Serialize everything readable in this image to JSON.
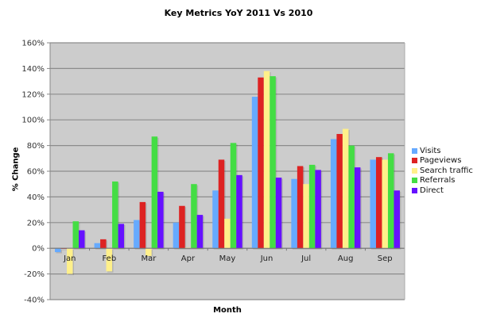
{
  "chart_data": {
    "type": "bar",
    "title": "Key Metrics YoY 2011 Vs 2010",
    "xlabel": "Month",
    "ylabel": "% Change",
    "ylim": [
      -40,
      160
    ],
    "yticks": [
      "160%",
      "140%",
      "120%",
      "100%",
      "80%",
      "60%",
      "40%",
      "20%",
      "0%",
      "-20%",
      "-40%"
    ],
    "ytick_values": [
      160,
      140,
      120,
      100,
      80,
      60,
      40,
      20,
      0,
      -20,
      -40
    ],
    "grid": true,
    "legend_position": "right",
    "categories": [
      "Jan",
      "Feb",
      "Mar",
      "Apr",
      "May",
      "Jun",
      "Jul",
      "Aug",
      "Sep"
    ],
    "series": [
      {
        "name": "Visits",
        "color": "#66aaff",
        "values": [
          -3,
          4,
          22,
          20,
          45,
          118,
          54,
          85,
          69
        ]
      },
      {
        "name": "Pageviews",
        "color": "#dd2222",
        "values": [
          -0.5,
          7,
          36,
          33,
          69,
          133,
          64,
          89,
          71
        ]
      },
      {
        "name": "Search traffic",
        "color": "#fff08a",
        "values": [
          -20,
          -18,
          -6,
          0.5,
          23,
          138,
          50,
          93,
          69
        ]
      },
      {
        "name": "Referrals",
        "color": "#44dd44",
        "values": [
          21,
          52,
          87,
          50,
          82,
          134,
          65,
          80,
          74
        ]
      },
      {
        "name": "Direct",
        "color": "#6611ff",
        "values": [
          14,
          19,
          44,
          26,
          57,
          55,
          61,
          63,
          45
        ]
      }
    ]
  },
  "colors": {
    "plot_background": "#cccccc",
    "gridline": "#8c8c8c",
    "axis": "#888888"
  }
}
